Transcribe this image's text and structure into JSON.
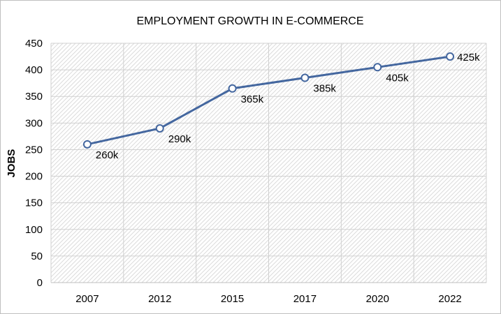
{
  "chart_data": {
    "type": "line",
    "title": "EMPLOYMENT GROWTH IN E-COMMERCE",
    "xlabel": "",
    "ylabel": "JOBS",
    "categories": [
      "2007",
      "2012",
      "2015",
      "2017",
      "2020",
      "2022"
    ],
    "series": [
      {
        "values": [
          260,
          290,
          365,
          385,
          405,
          425
        ],
        "data_labels": [
          "260k",
          "290k",
          "365k",
          "385k",
          "405k",
          "425k"
        ],
        "color": "#44679F"
      }
    ],
    "ylim": [
      0,
      450
    ],
    "yticks": [
      0,
      50,
      100,
      150,
      200,
      250,
      300,
      350,
      400,
      450
    ],
    "grid": true,
    "plot_background": "hatched light gray",
    "legend": "none",
    "marker": "open circle"
  }
}
